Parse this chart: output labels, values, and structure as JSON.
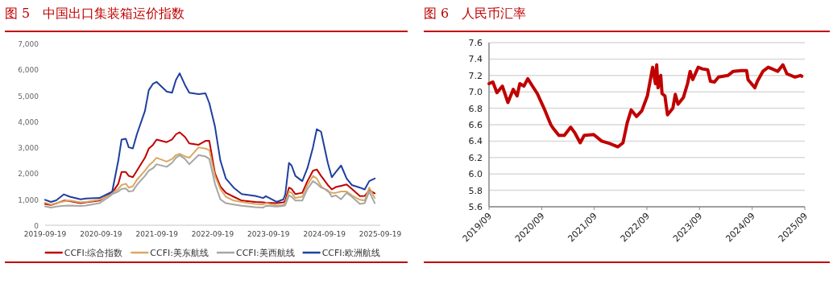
{
  "chart_data": [
    {
      "type": "line",
      "title": "图 5　中国出口集装箱运价指数",
      "legend": "bottom",
      "x": [
        "2019-09-19",
        "2019-10-27",
        "2019-12-01",
        "2020-01-20",
        "2020-02-28",
        "2020-05-08",
        "2020-06-12",
        "2020-09-08",
        "2020-11-18",
        "2020-12-01",
        "2021-01-10",
        "2021-01-31",
        "2021-02-28",
        "2021-03-19",
        "2021-04-15",
        "2021-05-11",
        "2021-07-03",
        "2021-07-28",
        "2021-08-25",
        "2021-09-17",
        "2021-11-22",
        "2021-12-27",
        "2022-01-22",
        "2022-02-15",
        "2022-03-22",
        "2022-04-19",
        "2022-06-19",
        "2022-08-03",
        "2022-08-28",
        "2022-10-04",
        "2022-11-08",
        "2022-12-14",
        "2023-02-03",
        "2023-03-28",
        "2023-06-24",
        "2023-08-15",
        "2023-09-02",
        "2023-11-11",
        "2023-12-26",
        "2024-01-07",
        "2024-01-31",
        "2024-02-17",
        "2024-03-13",
        "2024-04-27",
        "2024-05-31",
        "2024-07-06",
        "2024-07-31",
        "2024-08-28",
        "2024-10-11",
        "2024-11-06",
        "2024-12-02",
        "2025-01-06",
        "2025-02-11",
        "2025-03-17",
        "2025-05-09",
        "2025-06-09",
        "2025-07-09",
        "2025-08-14"
      ],
      "xlim": [
        "2019-09-19",
        "2025-09-19"
      ],
      "xticks": [
        {
          "value": "2019-09-19",
          "label": "2019-09-19"
        },
        {
          "value": "2020-09-19",
          "label": "2020-09-19"
        },
        {
          "value": "2021-09-19",
          "label": "2021-09-19"
        },
        {
          "value": "2022-09-19",
          "label": "2022-09-19"
        },
        {
          "value": "2023-09-19",
          "label": "2023-09-19"
        },
        {
          "value": "2024-09-19",
          "label": "2024-09-19"
        },
        {
          "value": "2025-09-19",
          "label": "2025-09-19"
        }
      ],
      "ylim": [
        0,
        7000
      ],
      "yticks": [
        0,
        {
          "value": 1000,
          "label": "1,000"
        },
        {
          "value": 2000,
          "label": "2,000"
        },
        {
          "value": 3000,
          "label": "3,000"
        },
        {
          "value": 4000,
          "label": "4,000"
        },
        {
          "value": 5000,
          "label": "5,000"
        },
        {
          "value": 6000,
          "label": "6,000"
        },
        {
          "value": 7000,
          "label": "7,000"
        }
      ],
      "series": [
        {
          "name": "CCFI:综合指数",
          "color": "#c00000",
          "values": [
            820,
            780,
            840,
            950,
            930,
            850,
            880,
            950,
            1210,
            1250,
            1600,
            2050,
            2050,
            1900,
            1850,
            2100,
            2600,
            2950,
            3100,
            3300,
            3200,
            3300,
            3500,
            3580,
            3400,
            3150,
            3100,
            3250,
            3250,
            2000,
            1500,
            1250,
            1100,
            950,
            900,
            880,
            870,
            850,
            880,
            950,
            1450,
            1400,
            1200,
            1250,
            1700,
            2100,
            2150,
            1900,
            1550,
            1380,
            1470,
            1520,
            1570,
            1400,
            1120,
            1130,
            1350,
            1230
          ]
        },
        {
          "name": "CCFI:美东航线",
          "color": "#d9a860",
          "values": [
            870,
            800,
            850,
            920,
            950,
            880,
            900,
            980,
            1170,
            1250,
            1400,
            1550,
            1600,
            1450,
            1500,
            1750,
            2100,
            2300,
            2450,
            2600,
            2450,
            2550,
            2700,
            2750,
            2650,
            2600,
            3000,
            2950,
            2900,
            1900,
            1400,
            1100,
            950,
            900,
            820,
            800,
            850,
            760,
            780,
            850,
            1300,
            1250,
            1050,
            1100,
            1550,
            1900,
            1800,
            1500,
            1300,
            1250,
            1250,
            1300,
            1300,
            1150,
            980,
            950,
            1450,
            1050
          ]
        },
        {
          "name": "CCFI:美西航线",
          "color": "#a6a6a6",
          "values": [
            730,
            680,
            720,
            750,
            760,
            740,
            760,
            850,
            1130,
            1200,
            1300,
            1400,
            1420,
            1300,
            1320,
            1550,
            1900,
            2100,
            2200,
            2350,
            2250,
            2400,
            2600,
            2700,
            2550,
            2350,
            2700,
            2650,
            2550,
            1600,
            1000,
            850,
            800,
            750,
            700,
            680,
            750,
            720,
            740,
            780,
            1150,
            1100,
            950,
            950,
            1400,
            1700,
            1600,
            1450,
            1350,
            1100,
            1150,
            1000,
            1250,
            1100,
            820,
            850,
            1300,
            850
          ]
        },
        {
          "name": "CCFI:欧洲航线",
          "color": "#1f3f9f",
          "values": [
            980,
            900,
            960,
            1190,
            1100,
            1000,
            1030,
            1050,
            1260,
            1300,
            2500,
            3300,
            3330,
            3000,
            2960,
            3500,
            4400,
            5200,
            5450,
            5520,
            5150,
            5100,
            5600,
            5850,
            5400,
            5100,
            5050,
            5080,
            4700,
            3800,
            2500,
            1800,
            1450,
            1200,
            1130,
            1050,
            1120,
            900,
            1000,
            1200,
            2400,
            2300,
            1900,
            1700,
            2200,
            3000,
            3700,
            3600,
            2400,
            1850,
            2050,
            2300,
            1800,
            1550,
            1450,
            1380,
            1700,
            1800
          ]
        }
      ]
    },
    {
      "type": "line",
      "title": "图 6　人民币汇率",
      "grid": "y",
      "x": [
        "2019-09-01",
        "2019-09-28",
        "2019-10-26",
        "2019-12-03",
        "2020-01-10",
        "2020-02-16",
        "2020-03-14",
        "2020-04-02",
        "2020-04-30",
        "2020-05-27",
        "2020-06-25",
        "2020-08-01",
        "2020-09-17",
        "2020-11-03",
        "2020-11-22",
        "2020-12-29",
        "2021-02-05",
        "2021-03-21",
        "2021-04-19",
        "2021-05-26",
        "2021-06-23",
        "2021-08-28",
        "2021-10-22",
        "2021-12-17",
        "2022-02-12",
        "2022-03-19",
        "2022-04-17",
        "2022-05-15",
        "2022-06-21",
        "2022-07-28",
        "2022-09-04",
        "2022-10-11",
        "2022-10-30",
        "2022-11-08",
        "2022-11-17",
        "2022-12-06",
        "2022-12-15",
        "2023-01-04",
        "2023-01-22",
        "2023-02-28",
        "2023-03-17",
        "2023-04-05",
        "2023-05-12",
        "2023-06-10",
        "2023-06-28",
        "2023-07-16",
        "2023-08-23",
        "2023-09-21",
        "2023-10-28",
        "2023-11-16",
        "2023-12-14",
        "2024-01-11",
        "2024-03-16",
        "2024-04-22",
        "2024-06-17",
        "2024-07-24",
        "2024-08-03",
        "2024-09-19",
        "2024-10-07",
        "2024-11-14",
        "2024-12-21",
        "2025-01-18",
        "2025-02-25",
        "2025-04-02",
        "2025-04-30",
        "2025-06-25",
        "2025-08-01",
        "2025-08-11"
      ],
      "xlim": [
        "2019-09",
        "2025-09"
      ],
      "xticks": [
        {
          "value": "2019-09",
          "label": "2019/09"
        },
        {
          "value": "2020-09",
          "label": "2020/09"
        },
        {
          "value": "2021-09",
          "label": "2021/09"
        },
        {
          "value": "2022-09",
          "label": "2022/09"
        },
        {
          "value": "2023-09",
          "label": "2023/09"
        },
        {
          "value": "2024-09",
          "label": "2024/09"
        },
        {
          "value": "2025-09",
          "label": "2025/09"
        }
      ],
      "ylim": [
        5.6,
        7.6
      ],
      "yticks": [
        {
          "value": 5.6,
          "label": "5.6"
        },
        {
          "value": 5.8,
          "label": "5.8"
        },
        {
          "value": 6.0,
          "label": "6.0"
        },
        {
          "value": 6.2,
          "label": "6.2"
        },
        {
          "value": 6.4,
          "label": "6.4"
        },
        {
          "value": 6.6,
          "label": "6.6"
        },
        {
          "value": 6.8,
          "label": "6.8"
        },
        {
          "value": 7.0,
          "label": "7.0"
        },
        {
          "value": 7.2,
          "label": "7.2"
        },
        {
          "value": 7.4,
          "label": "7.4"
        },
        {
          "value": 7.6,
          "label": "7.6"
        }
      ],
      "series": [
        {
          "color": "#c00000",
          "values": [
            7.1,
            7.12,
            6.99,
            7.07,
            6.87,
            7.03,
            6.95,
            7.1,
            7.07,
            7.16,
            7.08,
            6.98,
            6.8,
            6.6,
            6.55,
            6.47,
            6.47,
            6.57,
            6.5,
            6.38,
            6.47,
            6.48,
            6.4,
            6.37,
            6.33,
            6.38,
            6.62,
            6.78,
            6.7,
            6.77,
            6.95,
            7.3,
            7.1,
            7.33,
            7.05,
            7.2,
            6.98,
            6.95,
            6.72,
            6.8,
            6.97,
            6.85,
            6.93,
            7.1,
            7.25,
            7.15,
            7.3,
            7.28,
            7.27,
            7.13,
            7.12,
            7.18,
            7.2,
            7.25,
            7.26,
            7.26,
            7.15,
            7.05,
            7.13,
            7.25,
            7.3,
            7.28,
            7.25,
            7.33,
            7.22,
            7.18,
            7.2,
            7.19
          ]
        }
      ]
    }
  ]
}
